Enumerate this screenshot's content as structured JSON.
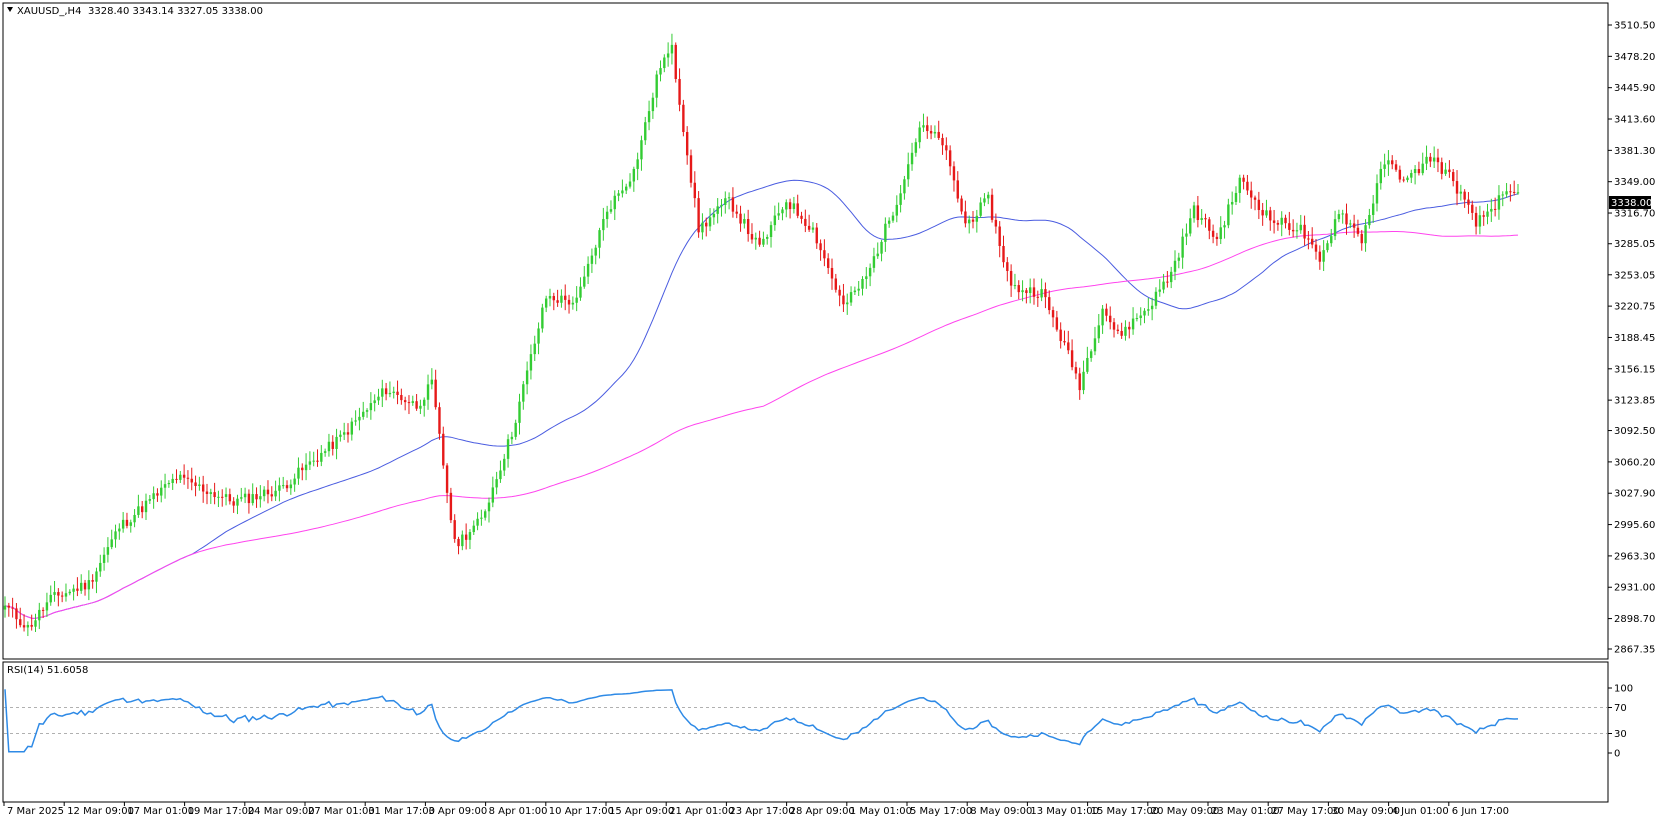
{
  "header": {
    "symbol": "XAUUSD_,H4",
    "ohlc": "3328.40 3343.14 3327.05 3338.00",
    "price_tag": "3338.00"
  },
  "rsi_panel": {
    "label": "RSI(14) 51.6058"
  },
  "colors": {
    "bull": "#33cc33",
    "bear": "#e61919",
    "ma_fast": "#4a5ce0",
    "ma_slow": "#ff44ee",
    "rsi": "#2e8ae6",
    "axis": "#000000",
    "level": "#b0b0b0"
  },
  "chart_data": [
    {
      "type": "candlestick",
      "title": "XAUUSD_,H4",
      "ylim": [
        2867.35,
        3510.5
      ],
      "y_ticks": [
        "3510.50",
        "3478.20",
        "3445.90",
        "3413.60",
        "3381.30",
        "3349.00",
        "3316.70",
        "3285.05",
        "3253.05",
        "3220.75",
        "3188.45",
        "3156.15",
        "3123.85",
        "3092.50",
        "3060.20",
        "3027.90",
        "2995.60",
        "2963.30",
        "2931.00",
        "2898.70",
        "2867.35"
      ],
      "x_ticks": [
        "7 Mar 2025",
        "12 Mar 09:00",
        "17 Mar 01:00",
        "19 Mar 17:00",
        "24 Mar 09:00",
        "27 Mar 01:00",
        "31 Mar 17:00",
        "3 Apr 09:00",
        "8 Apr 01:00",
        "10 Apr 17:00",
        "15 Apr 09:00",
        "21 Apr 01:00",
        "23 Apr 17:00",
        "28 Apr 09:00",
        "1 May 01:00",
        "5 May 17:00",
        "8 May 09:00",
        "13 May 01:00",
        "15 May 17:00",
        "20 May 09:00",
        "23 May 01:00",
        "27 May 17:00",
        "30 May 09:00",
        "4 Jun 01:00",
        "6 Jun 17:00"
      ],
      "anchors": [
        {
          "i": 0,
          "c": 2912
        },
        {
          "i": 6,
          "c": 2889
        },
        {
          "i": 12,
          "c": 2919
        },
        {
          "i": 22,
          "c": 2935
        },
        {
          "i": 30,
          "c": 2993
        },
        {
          "i": 45,
          "c": 3044
        },
        {
          "i": 60,
          "c": 3019
        },
        {
          "i": 72,
          "c": 3032
        },
        {
          "i": 88,
          "c": 3085
        },
        {
          "i": 100,
          "c": 3135
        },
        {
          "i": 108,
          "c": 3118
        },
        {
          "i": 112,
          "c": 3140
        },
        {
          "i": 118,
          "c": 2975
        },
        {
          "i": 125,
          "c": 3000
        },
        {
          "i": 133,
          "c": 3090
        },
        {
          "i": 142,
          "c": 3230
        },
        {
          "i": 150,
          "c": 3225
        },
        {
          "i": 158,
          "c": 3320
        },
        {
          "i": 165,
          "c": 3360
        },
        {
          "i": 172,
          "c": 3470
        },
        {
          "i": 175,
          "c": 3485
        },
        {
          "i": 182,
          "c": 3300
        },
        {
          "i": 190,
          "c": 3330
        },
        {
          "i": 198,
          "c": 3280
        },
        {
          "i": 205,
          "c": 3330
        },
        {
          "i": 212,
          "c": 3300
        },
        {
          "i": 220,
          "c": 3220
        },
        {
          "i": 226,
          "c": 3250
        },
        {
          "i": 234,
          "c": 3330
        },
        {
          "i": 240,
          "c": 3405
        },
        {
          "i": 246,
          "c": 3390
        },
        {
          "i": 252,
          "c": 3305
        },
        {
          "i": 258,
          "c": 3330
        },
        {
          "i": 264,
          "c": 3240
        },
        {
          "i": 272,
          "c": 3235
        },
        {
          "i": 278,
          "c": 3180
        },
        {
          "i": 282,
          "c": 3140
        },
        {
          "i": 288,
          "c": 3220
        },
        {
          "i": 292,
          "c": 3190
        },
        {
          "i": 300,
          "c": 3220
        },
        {
          "i": 306,
          "c": 3255
        },
        {
          "i": 312,
          "c": 3320
        },
        {
          "i": 318,
          "c": 3290
        },
        {
          "i": 324,
          "c": 3350
        },
        {
          "i": 332,
          "c": 3310
        },
        {
          "i": 340,
          "c": 3300
        },
        {
          "i": 345,
          "c": 3265
        },
        {
          "i": 350,
          "c": 3320
        },
        {
          "i": 356,
          "c": 3290
        },
        {
          "i": 362,
          "c": 3370
        },
        {
          "i": 368,
          "c": 3350
        },
        {
          "i": 374,
          "c": 3375
        },
        {
          "i": 380,
          "c": 3350
        },
        {
          "i": 386,
          "c": 3305
        },
        {
          "i": 392,
          "c": 3330
        },
        {
          "i": 397,
          "c": 3338
        }
      ],
      "series": [
        {
          "values_from": "moving-average-fast"
        },
        {
          "values_from": "moving-average-slow"
        }
      ]
    },
    {
      "type": "line",
      "title": "RSI(14) 51.6058",
      "ylim": [
        0,
        100
      ],
      "y_ticks": [
        "100",
        "70",
        "30",
        "0"
      ],
      "levels": [
        70,
        30
      ]
    }
  ]
}
